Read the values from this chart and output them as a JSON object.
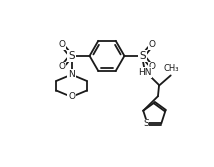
{
  "bg_color": "#ffffff",
  "line_color": "#1a1a1a",
  "line_width": 1.3,
  "font_size": 6.5,
  "figsize": [
    2.14,
    1.67
  ],
  "dpi": 100,
  "xlim": [
    0,
    10
  ],
  "ylim": [
    0,
    7.8
  ]
}
